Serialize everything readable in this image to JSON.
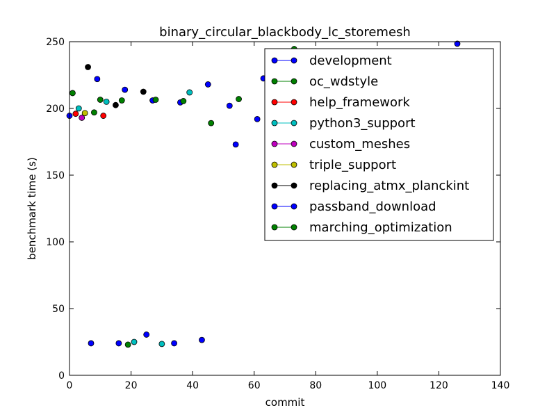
{
  "chart_data": {
    "type": "scatter",
    "title": "binary_circular_blackbody_lc_storemesh",
    "xlabel": "commit",
    "ylabel": "benchmark time (s)",
    "xlim": [
      0,
      140
    ],
    "ylim": [
      0,
      250
    ],
    "xticks": [
      0,
      20,
      40,
      60,
      80,
      100,
      120,
      140
    ],
    "yticks": [
      0,
      50,
      100,
      150,
      200,
      250
    ],
    "grid": false,
    "legend_position": "top-right",
    "series": [
      {
        "name": "development",
        "color": "#0000ff",
        "x": [
          0,
          7,
          9,
          16,
          18,
          25,
          27,
          34,
          36,
          43,
          45,
          52,
          54,
          61,
          63,
          126
        ],
        "y": [
          194.5,
          24,
          222,
          24,
          214,
          30.5,
          206,
          24,
          204.5,
          26.5,
          218,
          202,
          173,
          192,
          222.5,
          248.5
        ]
      },
      {
        "name": "oc_wdstyle",
        "color": "#008000",
        "x": [
          1,
          8,
          10,
          17,
          19,
          28,
          37,
          46,
          55,
          73
        ],
        "y": [
          211.5,
          197,
          206.5,
          206,
          23,
          206.5,
          205.5,
          189,
          207,
          244.5
        ]
      },
      {
        "name": "help_framework",
        "color": "#ff0000",
        "x": [
          2,
          11
        ],
        "y": [
          196,
          194.5
        ]
      },
      {
        "name": "python3_support",
        "color": "#00bfbf",
        "x": [
          3,
          12,
          21,
          30,
          39
        ],
        "y": [
          200,
          205,
          25,
          23.5,
          212
        ]
      },
      {
        "name": "custom_meshes",
        "color": "#bf00bf",
        "x": [
          4
        ],
        "y": [
          193
        ]
      },
      {
        "name": "triple_support",
        "color": "#bfbf00",
        "x": [
          5
        ],
        "y": [
          196.5
        ]
      },
      {
        "name": "replacing_atmx_planckint",
        "color": "#000000",
        "x": [
          6,
          15,
          24
        ],
        "y": [
          231,
          202.5,
          212.5
        ]
      },
      {
        "name": "passband_download",
        "color": "#0000ff",
        "x": [],
        "y": []
      },
      {
        "name": "marching_optimization",
        "color": "#008000",
        "x": [],
        "y": []
      }
    ]
  }
}
